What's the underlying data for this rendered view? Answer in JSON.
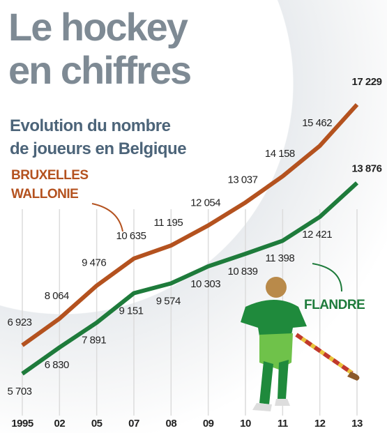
{
  "chart_data": {
    "type": "line",
    "title": "Le hockey\nen chiffres",
    "subtitle": "Evolution du nombre\nde joueurs en Belgique",
    "categories": [
      "1995",
      "02",
      "05",
      "07",
      "08",
      "09",
      "10",
      "11",
      "12",
      "13"
    ],
    "series": [
      {
        "name": "BRUXELLES\nWALLONIE",
        "color": "#b4521f",
        "values": [
          6923,
          8064,
          9476,
          10635,
          11195,
          12054,
          13037,
          14158,
          15462,
          17229
        ],
        "value_labels": [
          "6 923",
          "8 064",
          "9 476",
          "10 635",
          "11 195",
          "12 054",
          "13 037",
          "14 158",
          "15 462",
          "17 229"
        ]
      },
      {
        "name": "FLANDRE",
        "color": "#1e7b3b",
        "values": [
          5703,
          6830,
          7891,
          9151,
          9574,
          10303,
          10839,
          11398,
          12421,
          13876
        ],
        "value_labels": [
          "5 703",
          "6 830",
          "7 891",
          "9 151",
          "9 574",
          "10 303",
          "10 839",
          "11 398",
          "12 421",
          "13 876"
        ]
      }
    ]
  }
}
